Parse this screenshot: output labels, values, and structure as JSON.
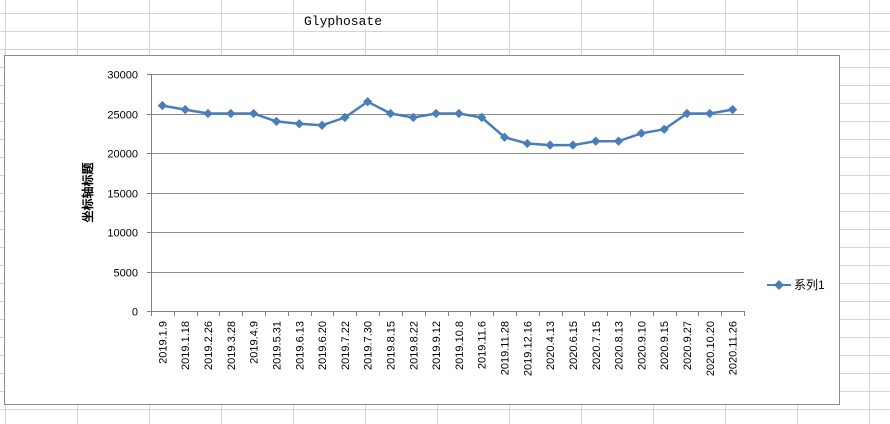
{
  "sheet": {
    "title": "Glyphosate"
  },
  "chart_data": {
    "type": "line",
    "title": "",
    "xlabel": "",
    "ylabel": "坐标轴标题",
    "ylim": [
      0,
      30000
    ],
    "yticks": [
      0,
      5000,
      10000,
      15000,
      20000,
      25000,
      30000
    ],
    "grid": "horizontal",
    "legend_position": "right",
    "categories": [
      "2019.1.9",
      "2019.1.18",
      "2019.2.26",
      "2019.3.28",
      "2019.4.9",
      "2019.5.31",
      "2019.6.13",
      "2019.6.20",
      "2019.7.22",
      "2019.7.30",
      "2019.8.15",
      "2019.8.22",
      "2019.9.12",
      "2019.10.8",
      "2019.11.6",
      "2019.11.28",
      "2019.12.16",
      "2020.4.13",
      "2020.6.15",
      "2020.7.15",
      "2020.8.13",
      "2020.9.10",
      "2020.9.15",
      "2020.9.27",
      "2020.10.20",
      "2020.11.26"
    ],
    "series": [
      {
        "name": "系列1",
        "color": "#4a7ebb",
        "values": [
          26000,
          25500,
          25000,
          25000,
          25000,
          24000,
          23700,
          23500,
          24500,
          26500,
          25000,
          24500,
          25000,
          25000,
          24500,
          22000,
          21200,
          21000,
          21000,
          21500,
          21500,
          22500,
          23000,
          25000,
          25000,
          25500
        ]
      }
    ]
  }
}
